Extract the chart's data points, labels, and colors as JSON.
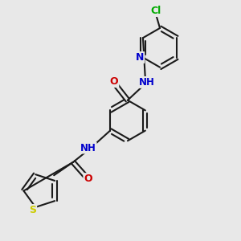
{
  "background_color": "#e8e8e8",
  "bond_color": "#1a1a1a",
  "atom_colors": {
    "N": "#0000cc",
    "O": "#cc0000",
    "S": "#cccc00",
    "Cl": "#00aa00",
    "C": "#1a1a1a"
  },
  "figsize": [
    3.0,
    3.0
  ],
  "dpi": 100
}
